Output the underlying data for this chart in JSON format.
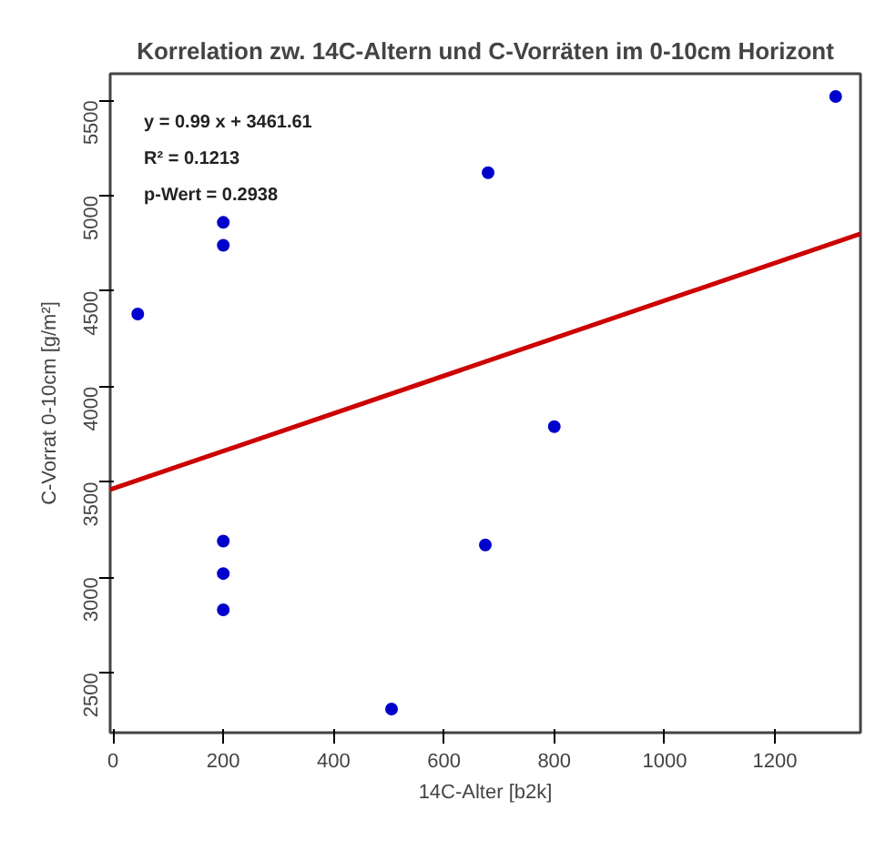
{
  "chart_data": {
    "type": "scatter",
    "title": "Korrelation zw. 14C-Altern und C-Vorräten im 0-10cm Horizont",
    "xlabel": "14C-Alter [b2k]",
    "ylabel": "C-Vorrat 0-10cm [g/m²]",
    "annotations": [
      "y = 0.99 x +  3461.61",
      "R² = 0.1213",
      "p-Wert = 0.2938"
    ],
    "series": [
      {
        "color": "#0000cc",
        "marker": "circle",
        "x": [
          45,
          200,
          200,
          200,
          200,
          200,
          505,
          680,
          800,
          675,
          1310
        ],
        "values": [
          4380,
          4860,
          4740,
          3190,
          3020,
          2830,
          2310,
          5120,
          3790,
          3170,
          5520
        ]
      },
      {
        "type": "line",
        "color": "#cc0000",
        "x": [
          -5,
          1355
        ],
        "values": [
          3460,
          4800
        ]
      }
    ],
    "xlim": [
      -5,
      1355
    ],
    "ylim": [
      2186,
      5639
    ],
    "xticks": [
      0,
      200,
      400,
      600,
      800,
      1000,
      1200
    ],
    "yticks": [
      2500,
      3000,
      3500,
      4000,
      4500,
      5000,
      5500
    ],
    "grid": false
  }
}
